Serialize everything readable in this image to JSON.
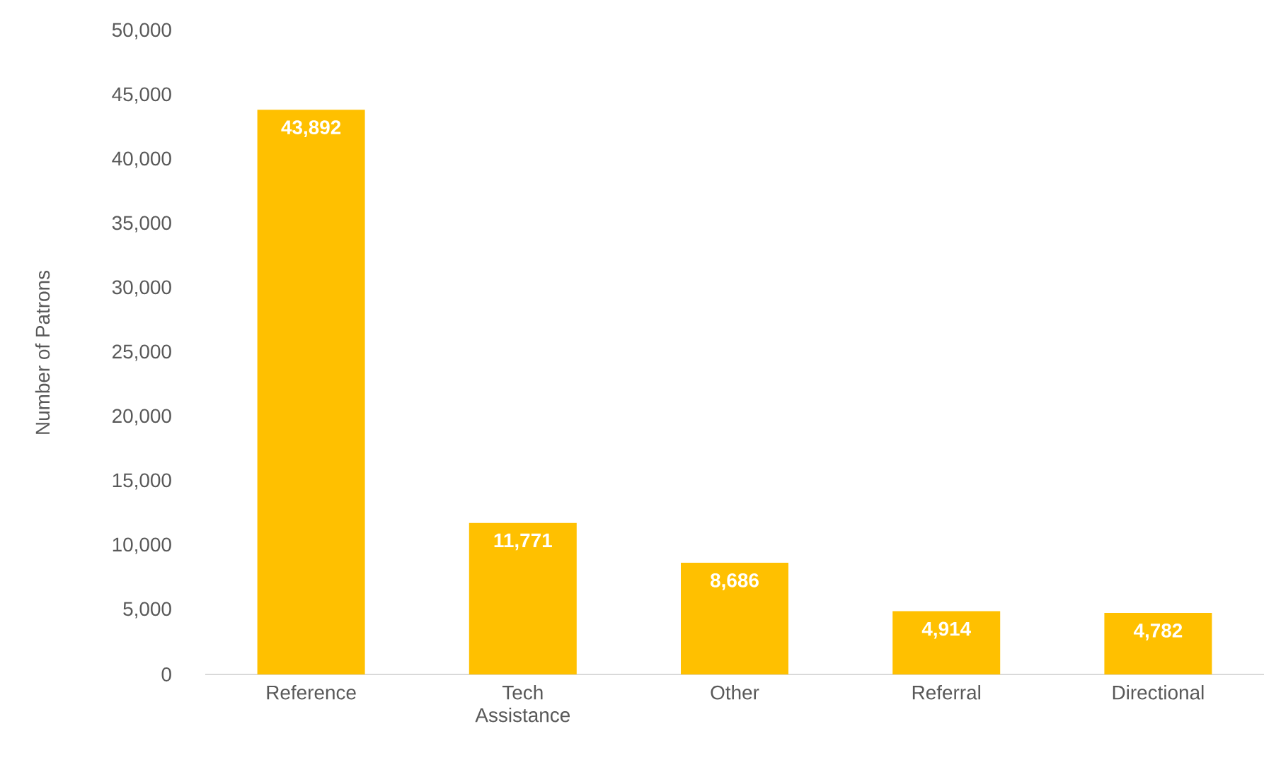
{
  "chart_data": {
    "type": "bar",
    "ylabel": "Number of Patrons",
    "categories": [
      "Reference",
      "Tech Assistance",
      "Other",
      "Referral",
      "Directional"
    ],
    "values": [
      43892,
      11771,
      8686,
      4914,
      4782
    ],
    "value_labels": [
      "43,892",
      "11,771",
      "8,686",
      "4,914",
      "4,782"
    ],
    "color": "#ffc000",
    "ylim": [
      0,
      50000
    ],
    "yticks": [
      {
        "value": 0,
        "label": "0"
      },
      {
        "value": 5000,
        "label": "5,000"
      },
      {
        "value": 10000,
        "label": "10,000"
      },
      {
        "value": 15000,
        "label": "15,000"
      },
      {
        "value": 20000,
        "label": "20,000"
      },
      {
        "value": 25000,
        "label": "25,000"
      },
      {
        "value": 30000,
        "label": "30,000"
      },
      {
        "value": 35000,
        "label": "35,000"
      },
      {
        "value": 40000,
        "label": "40,000"
      },
      {
        "value": 45000,
        "label": "45,000"
      },
      {
        "value": 50000,
        "label": "50,000"
      }
    ],
    "tick_labels": true
  }
}
